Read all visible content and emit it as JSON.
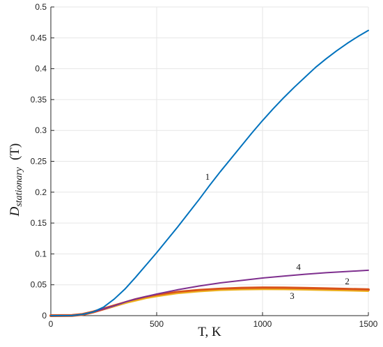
{
  "chart_data": {
    "type": "line",
    "xlabel": "T, K",
    "ylabel": {
      "main": "D",
      "sub": "stationary",
      "paren": "(T)"
    },
    "xlim": [
      0,
      1500
    ],
    "ylim": [
      0,
      0.5
    ],
    "grid": true,
    "xticks": [
      "0",
      "500",
      "1000",
      "1500"
    ],
    "yticks": [
      "0",
      "0.05",
      "0.1",
      "0.15",
      "0.2",
      "0.25",
      "0.3",
      "0.35",
      "0.4",
      "0.45",
      "0.5"
    ],
    "series": [
      {
        "name": "1",
        "color": "#0072BD",
        "label_at": [
          740,
          0.22
        ],
        "x": [
          0,
          100,
          150,
          200,
          250,
          300,
          350,
          400,
          450,
          500,
          550,
          600,
          650,
          700,
          750,
          800,
          850,
          900,
          950,
          1000,
          1050,
          1100,
          1150,
          1200,
          1250,
          1300,
          1350,
          1400,
          1450,
          1500
        ],
        "y": [
          0,
          0.0002,
          0.002,
          0.006,
          0.014,
          0.027,
          0.043,
          0.062,
          0.082,
          0.102,
          0.123,
          0.144,
          0.166,
          0.188,
          0.211,
          0.233,
          0.254,
          0.275,
          0.296,
          0.316,
          0.335,
          0.353,
          0.37,
          0.386,
          0.402,
          0.416,
          0.429,
          0.441,
          0.452,
          0.462
        ]
      },
      {
        "name": "2",
        "color": "#D95319",
        "label_at": [
          1400,
          0.051
        ],
        "x": [
          0,
          100,
          150,
          200,
          250,
          300,
          350,
          400,
          450,
          500,
          600,
          700,
          800,
          900,
          1000,
          1100,
          1200,
          1300,
          1400,
          1500
        ],
        "y": [
          0,
          0.0003,
          0.002,
          0.006,
          0.011,
          0.016,
          0.021,
          0.026,
          0.03,
          0.033,
          0.038,
          0.041,
          0.043,
          0.0445,
          0.045,
          0.0448,
          0.0443,
          0.0436,
          0.0428,
          0.042
        ]
      },
      {
        "name": "3",
        "color": "#EDB120",
        "label_at": [
          1140,
          0.027
        ],
        "x": [
          0,
          100,
          150,
          200,
          250,
          300,
          350,
          400,
          450,
          500,
          600,
          700,
          800,
          900,
          1000,
          1100,
          1200,
          1300,
          1400,
          1500
        ],
        "y": [
          0,
          0.0003,
          0.002,
          0.006,
          0.011,
          0.015,
          0.02,
          0.024,
          0.028,
          0.031,
          0.036,
          0.039,
          0.041,
          0.042,
          0.0425,
          0.0423,
          0.0418,
          0.0411,
          0.0403,
          0.0395
        ]
      },
      {
        "name": "4",
        "color": "#7E2F8E",
        "label_at": [
          1170,
          0.074
        ],
        "x": [
          0,
          100,
          150,
          200,
          250,
          300,
          350,
          400,
          450,
          500,
          600,
          700,
          800,
          900,
          1000,
          1100,
          1200,
          1300,
          1400,
          1500
        ],
        "y": [
          0,
          0.0003,
          0.002,
          0.006,
          0.011,
          0.016,
          0.022,
          0.027,
          0.031,
          0.035,
          0.042,
          0.048,
          0.053,
          0.057,
          0.061,
          0.064,
          0.067,
          0.0695,
          0.0715,
          0.0735
        ]
      }
    ]
  }
}
